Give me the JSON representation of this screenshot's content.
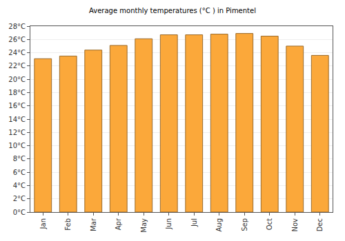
{
  "chart_data": {
    "type": "bar",
    "title": "Average monthly temperatures (°C ) in Pimentel",
    "categories": [
      "Jan",
      "Feb",
      "Mar",
      "Apr",
      "May",
      "Jun",
      "Jul",
      "Aug",
      "Sep",
      "Oct",
      "Nov",
      "Dec"
    ],
    "values": [
      23.1,
      23.5,
      24.4,
      25.1,
      26.1,
      26.7,
      26.7,
      26.8,
      26.9,
      26.5,
      25.0,
      23.6
    ],
    "color": "#fba83a",
    "ylim": [
      0,
      28
    ],
    "yticks": [
      {
        "value": 0,
        "label": "0°C"
      },
      {
        "value": 2,
        "label": "2°C"
      },
      {
        "value": 4,
        "label": "4°C"
      },
      {
        "value": 6,
        "label": "6°C"
      },
      {
        "value": 8,
        "label": "8°C"
      },
      {
        "value": 10,
        "label": "10°C"
      },
      {
        "value": 12,
        "label": "12°C"
      },
      {
        "value": 14,
        "label": "14°C"
      },
      {
        "value": 16,
        "label": "16°C"
      },
      {
        "value": 18,
        "label": "18°C"
      },
      {
        "value": 20,
        "label": "20°C"
      },
      {
        "value": 22,
        "label": "22°C"
      },
      {
        "value": 24,
        "label": "24°C"
      },
      {
        "value": 26,
        "label": "26°C"
      },
      {
        "value": 28,
        "label": "28°C"
      }
    ],
    "grid": true
  }
}
